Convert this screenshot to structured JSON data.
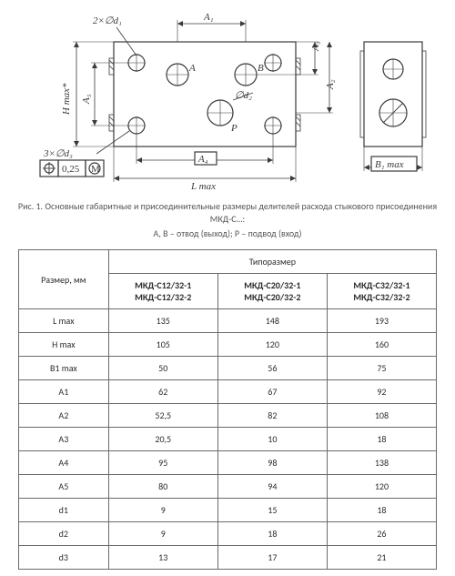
{
  "figure": {
    "labels": {
      "d1": "2×∅d₁",
      "A1": "A₁",
      "A3top": "A₃",
      "Hmax": "H max*",
      "A5": "A₅",
      "A": "A",
      "B": "B",
      "d2": "∅d₂",
      "A2": "A₂",
      "P": "P",
      "d3": "3×∅d₃",
      "tol": "0,25",
      "tolM": "M",
      "A4": "A₄",
      "Lmax": "L max",
      "B1max": "B₁ max"
    },
    "colors": {
      "stroke": "#3a3a3a",
      "hatch": "#5a5a5a",
      "text": "#3a3a3a",
      "bg": "#ffffff"
    }
  },
  "caption": {
    "line1": "Рис. 1. Основные габаритные и присоединительные размеры делителей расхода стыкового присоединения МКД-С…:",
    "line2": "А, В – отвод (выход); Р – подвод (вход)"
  },
  "table": {
    "header": {
      "dim": "Размер, мм",
      "group": "Типоразмер"
    },
    "models": [
      {
        "l1": "МКД-С12/32-1",
        "l2": "МКД-С12/32-2"
      },
      {
        "l1": "МКД-С20/32-1",
        "l2": "МКД-С20/32-2"
      },
      {
        "l1": "МКД-С32/32-1",
        "l2": "МКД-С32/32-2"
      }
    ],
    "rows": [
      {
        "name": "L max",
        "v": [
          "135",
          "148",
          "193"
        ]
      },
      {
        "name": "H max",
        "v": [
          "105",
          "120",
          "160"
        ]
      },
      {
        "name": "B1 max",
        "v": [
          "50",
          "56",
          "75"
        ]
      },
      {
        "name": "A1",
        "v": [
          "62",
          "67",
          "92"
        ]
      },
      {
        "name": "A2",
        "v": [
          "52,5",
          "82",
          "108"
        ]
      },
      {
        "name": "A3",
        "v": [
          "20,5",
          "10",
          "18"
        ]
      },
      {
        "name": "A4",
        "v": [
          "95",
          "98",
          "138"
        ]
      },
      {
        "name": "A5",
        "v": [
          "80",
          "94",
          "120"
        ]
      },
      {
        "name": "d1",
        "v": [
          "9",
          "15",
          "18"
        ]
      },
      {
        "name": "d2",
        "v": [
          "9",
          "18",
          "26"
        ]
      },
      {
        "name": "d3",
        "v": [
          "13",
          "17",
          "21"
        ]
      }
    ],
    "style": {
      "border_color": "#6a6a6a",
      "text_color": "#2b2b2b",
      "fontsize": 10,
      "header_fontweight": 400,
      "model_fontweight": 700
    }
  }
}
